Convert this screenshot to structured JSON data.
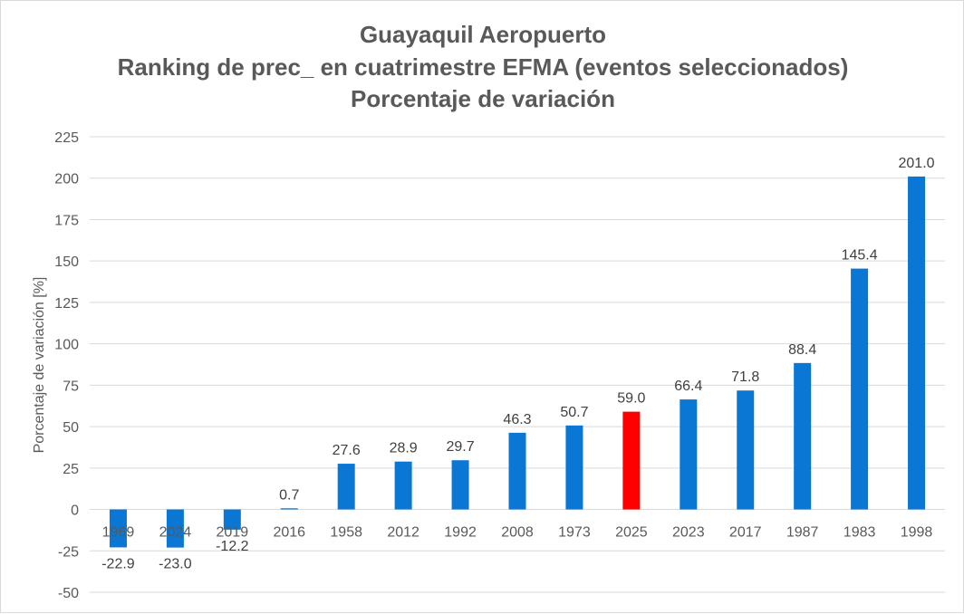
{
  "chart_data": {
    "type": "bar",
    "title": [
      "Guayaquil Aeropuerto",
      "Ranking de prec_ en cuatrimestre EFMA (eventos seleccionados)",
      "Porcentaje de variación"
    ],
    "xlabel": "",
    "ylabel": "Porcentaje de variación [%]",
    "ylim": [
      -50,
      225
    ],
    "yticks": [
      -50,
      -25,
      0,
      25,
      50,
      75,
      100,
      125,
      150,
      175,
      200,
      225
    ],
    "grid": true,
    "categories": [
      "1969",
      "2024",
      "2019",
      "2016",
      "1958",
      "2012",
      "1992",
      "2008",
      "1973",
      "2025",
      "2023",
      "2017",
      "1987",
      "1983",
      "1998"
    ],
    "values": [
      -22.9,
      -23.0,
      -12.2,
      0.7,
      27.6,
      28.9,
      29.7,
      46.3,
      50.7,
      59.0,
      66.4,
      71.8,
      88.4,
      145.4,
      201.0
    ],
    "data_labels": [
      "-22.9",
      "-23.0",
      "-12.2",
      "0.7",
      "27.6",
      "28.9",
      "29.7",
      "46.3",
      "50.7",
      "59.0",
      "66.4",
      "71.8",
      "88.4",
      "145.4",
      "201.0"
    ],
    "bar_colors": [
      "#0a77d4",
      "#0a77d4",
      "#0a77d4",
      "#0a77d4",
      "#0a77d4",
      "#0a77d4",
      "#0a77d4",
      "#0a77d4",
      "#0a77d4",
      "#ff0000",
      "#0a77d4",
      "#0a77d4",
      "#0a77d4",
      "#0a77d4",
      "#0a77d4"
    ],
    "highlight_category": "2025"
  }
}
